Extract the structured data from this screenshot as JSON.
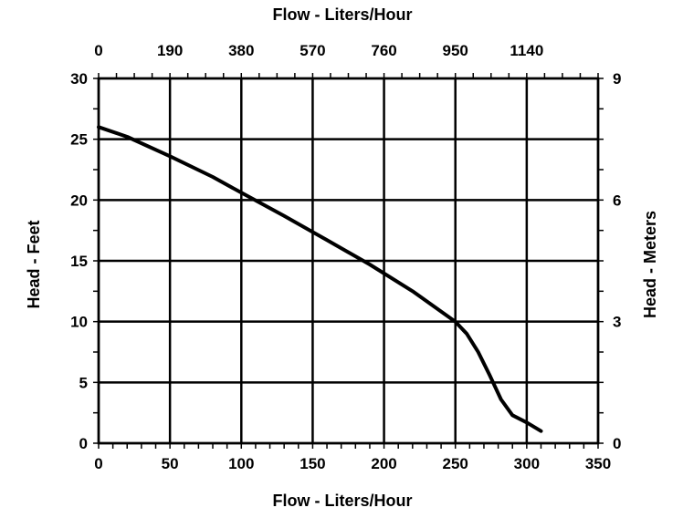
{
  "chart_data": {
    "type": "line",
    "title": "",
    "xlabel": "Flow - Liters/Hour",
    "x2label": "Flow - Liters/Hour",
    "ylabel": "Head - Feet",
    "y2label": "Head - Meters",
    "xlim": [
      0,
      350
    ],
    "ylim": [
      0,
      30
    ],
    "y2lim": [
      0,
      9
    ],
    "grid": true,
    "x_ticks": [
      "0",
      "50",
      "100",
      "150",
      "200",
      "250",
      "300",
      "350"
    ],
    "x2_ticks": [
      "0",
      "190",
      "380",
      "570",
      "760",
      "950",
      "1140"
    ],
    "y_ticks": [
      "0",
      "5",
      "10",
      "15",
      "20",
      "25",
      "30"
    ],
    "y2_ticks": [
      "0",
      "3",
      "6",
      "9"
    ],
    "series": [
      {
        "x": [
          0,
          20,
          50,
          80,
          100,
          130,
          160,
          190,
          220,
          250,
          258,
          266,
          274,
          282,
          290,
          300,
          310
        ],
        "y": [
          26.0,
          25.2,
          23.6,
          21.9,
          20.6,
          18.7,
          16.7,
          14.7,
          12.5,
          10.0,
          9.0,
          7.5,
          5.6,
          3.6,
          2.3,
          1.7,
          1.0
        ]
      }
    ]
  }
}
